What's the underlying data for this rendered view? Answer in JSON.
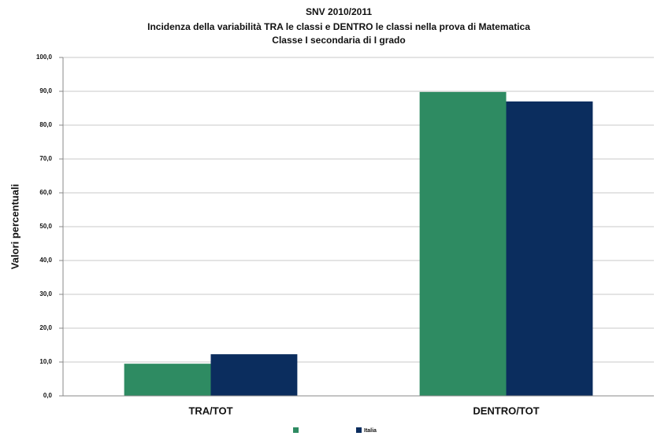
{
  "chart_data": {
    "type": "bar",
    "title": "SNV 2010/2011",
    "subtitle": [
      "Incidenza della variabilità TRA le classi e DENTRO le classi nella prova di Matematica",
      "Classe I secondaria di I grado"
    ],
    "y_label": "Valori percentuali",
    "categories": [
      "TRA/TOT",
      "DENTRO/TOT"
    ],
    "series": [
      {
        "color": "#2e8b62",
        "values": [
          9.5,
          89.8
        ]
      },
      {
        "name": "Italia",
        "color": "#0b2d5e",
        "values": [
          12.3,
          87.0
        ]
      }
    ],
    "ylim": [
      0,
      100
    ],
    "yticks": [
      {
        "value": 0,
        "label": "0,0"
      },
      {
        "value": 10,
        "label": "10,0"
      },
      {
        "value": 20,
        "label": "20,0"
      },
      {
        "value": 30,
        "label": "30,0"
      },
      {
        "value": 40,
        "label": "40,0"
      },
      {
        "value": 50,
        "label": "50,0"
      },
      {
        "value": 60,
        "label": "60,0"
      },
      {
        "value": 70,
        "label": "70,0"
      },
      {
        "value": 80,
        "label": "80,0"
      },
      {
        "value": 90,
        "label": "90,0"
      },
      {
        "value": 100,
        "label": "100,0"
      }
    ],
    "grid": true
  }
}
